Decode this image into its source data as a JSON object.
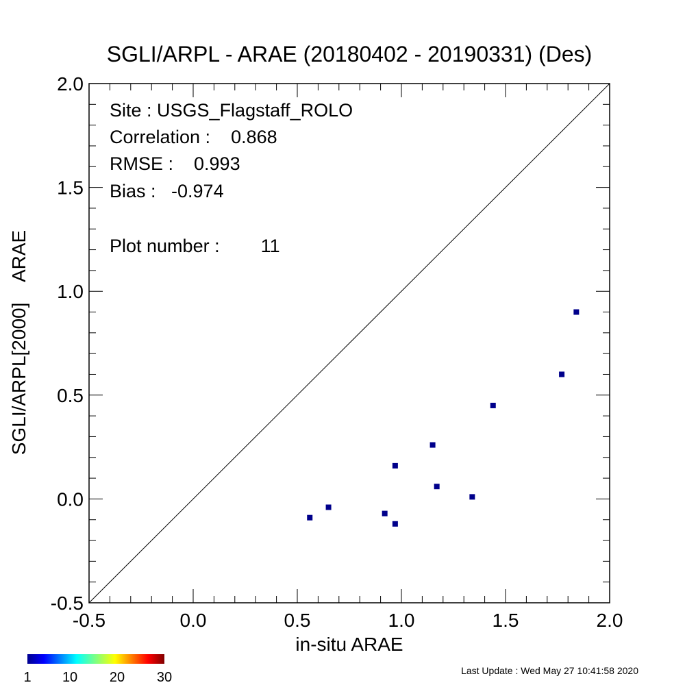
{
  "chart_data": {
    "type": "scatter",
    "title": "SGLI/ARPL - ARAE (20180402 - 20190331) (Des)",
    "xlabel": "in-situ ARAE",
    "ylabel": "SGLI/ARPL[2000]    ARAE",
    "xlim": [
      -0.5,
      2.0
    ],
    "ylim": [
      -0.5,
      2.0
    ],
    "xticks": [
      "-0.5",
      "0.0",
      "0.5",
      "1.0",
      "1.5",
      "2.0"
    ],
    "yticks": [
      "-0.5",
      "0.0",
      "0.5",
      "1.0",
      "1.5",
      "2.0"
    ],
    "reference_line": "1:1",
    "grid": false,
    "point_color": "#00008b",
    "points": [
      {
        "x": 0.56,
        "y": -0.09
      },
      {
        "x": 0.65,
        "y": -0.04
      },
      {
        "x": 0.92,
        "y": -0.07
      },
      {
        "x": 0.97,
        "y": -0.12
      },
      {
        "x": 0.97,
        "y": 0.16
      },
      {
        "x": 1.15,
        "y": 0.26
      },
      {
        "x": 1.17,
        "y": 0.06
      },
      {
        "x": 1.34,
        "y": 0.01
      },
      {
        "x": 1.44,
        "y": 0.45
      },
      {
        "x": 1.77,
        "y": 0.6
      },
      {
        "x": 1.84,
        "y": 0.9
      }
    ],
    "stats": {
      "site": "Site : USGS_Flagstaff_ROLO",
      "correlation": "Correlation :    0.868",
      "rmse": "RMSE :    0.993",
      "bias": "Bias :   -0.974",
      "plot_number": "Plot number :        11"
    },
    "colorbar": {
      "labels": [
        "1",
        "10",
        "20",
        "30"
      ],
      "values": [
        1,
        10,
        20,
        30
      ],
      "range": [
        1,
        30
      ],
      "colormap": "jet"
    }
  },
  "footer": {
    "last_update": "Last Update : Wed May 27 10:41:58 2020"
  }
}
